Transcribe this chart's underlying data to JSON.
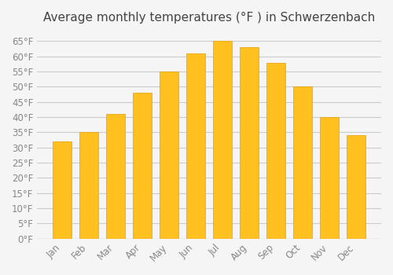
{
  "title": "Average monthly temperatures (°F ) in Schwerzenbach",
  "months": [
    "Jan",
    "Feb",
    "Mar",
    "Apr",
    "May",
    "Jun",
    "Jul",
    "Aug",
    "Sep",
    "Oct",
    "Nov",
    "Dec"
  ],
  "values": [
    32,
    35,
    41,
    48,
    55,
    61,
    65,
    63,
    58,
    50,
    40,
    34
  ],
  "bar_color": "#FFC020",
  "bar_edge_color": "#E8A000",
  "background_color": "#F5F5F5",
  "grid_color": "#CCCCCC",
  "text_color": "#888888",
  "title_color": "#444444",
  "ylim": [
    0,
    68
  ],
  "yticks": [
    0,
    5,
    10,
    15,
    20,
    25,
    30,
    35,
    40,
    45,
    50,
    55,
    60,
    65
  ],
  "ylabel_suffix": "°F",
  "title_fontsize": 11,
  "tick_fontsize": 8.5
}
